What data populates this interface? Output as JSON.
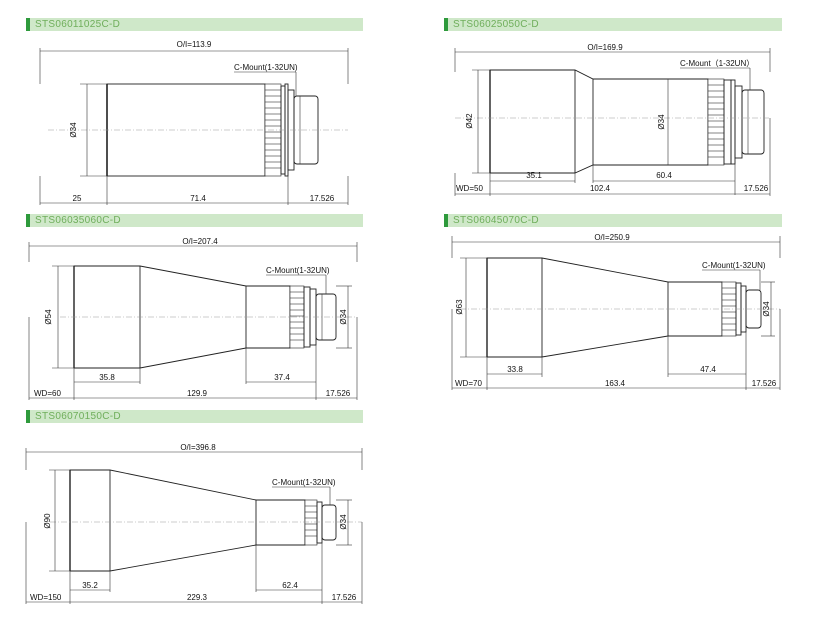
{
  "drawings": [
    {
      "title": "STS06011025C-D",
      "overall_label": "O/I=113.9",
      "mount_label": "C-Mount(1-32UN)",
      "diameter_label": "Ø34",
      "bottom_labels": [
        "25",
        "71.4",
        "17.526"
      ]
    },
    {
      "title": "STS06025050C-D",
      "overall_label": "O/I=169.9",
      "mount_label": "C-Mount（1-32UN）",
      "diameter_labels": [
        "Ø42",
        "Ø34"
      ],
      "inner_labels": [
        "35.1",
        "60.4"
      ],
      "bottom_labels": [
        "WD=50",
        "102.4",
        "17.526"
      ]
    },
    {
      "title": "STS06035060C-D",
      "overall_label": "O/I=207.4",
      "mount_label": "C-Mount(1-32UN)",
      "diameter_labels": [
        "Ø54",
        "Ø34"
      ],
      "inner_labels": [
        "35.8",
        "37.4"
      ],
      "bottom_labels": [
        "WD=60",
        "129.9",
        "17.526"
      ]
    },
    {
      "title": "STS06045070C-D",
      "overall_label": "O/I=250.9",
      "mount_label": "C-Mount(1-32UN)",
      "diameter_labels": [
        "Ø63",
        "Ø34"
      ],
      "inner_labels": [
        "33.8",
        "47.4"
      ],
      "bottom_labels": [
        "WD=70",
        "163.4",
        "17.526"
      ]
    },
    {
      "title": "STS06070150C-D",
      "overall_label": "O/I=396.8",
      "mount_label": "C-Mount(1-32UN)",
      "diameter_labels": [
        "Ø90",
        "Ø34"
      ],
      "inner_labels": [
        "35.2",
        "62.4"
      ],
      "bottom_labels": [
        "WD=150",
        "229.3",
        "17.526"
      ]
    }
  ]
}
